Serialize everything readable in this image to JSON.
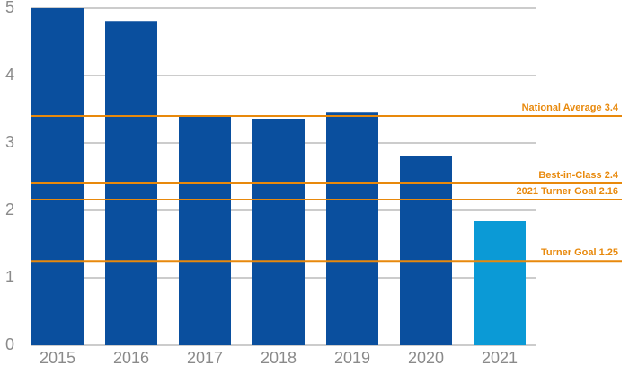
{
  "chart_data": {
    "type": "bar",
    "categories": [
      "2015",
      "2016",
      "2017",
      "2018",
      "2019",
      "2020",
      "2021"
    ],
    "values": [
      5.0,
      4.81,
      3.41,
      3.36,
      3.45,
      2.81,
      1.84
    ],
    "colors": [
      "#0a4f9e",
      "#0a4f9e",
      "#0a4f9e",
      "#0a4f9e",
      "#0a4f9e",
      "#0a4f9e",
      "#0b9ad6"
    ],
    "ylim": [
      0,
      5
    ],
    "yticks": [
      0,
      1,
      2,
      3,
      4,
      5
    ],
    "grid": true,
    "reference_lines": [
      {
        "label": "National Average 3.4",
        "value": 3.4
      },
      {
        "label": "Best-in-Class 2.4",
        "value": 2.4
      },
      {
        "label": "2021 Turner Goal 2.16",
        "value": 2.16
      },
      {
        "label": "Turner Goal 1.25",
        "value": 1.25
      }
    ],
    "reference_color": "#e8890c"
  }
}
